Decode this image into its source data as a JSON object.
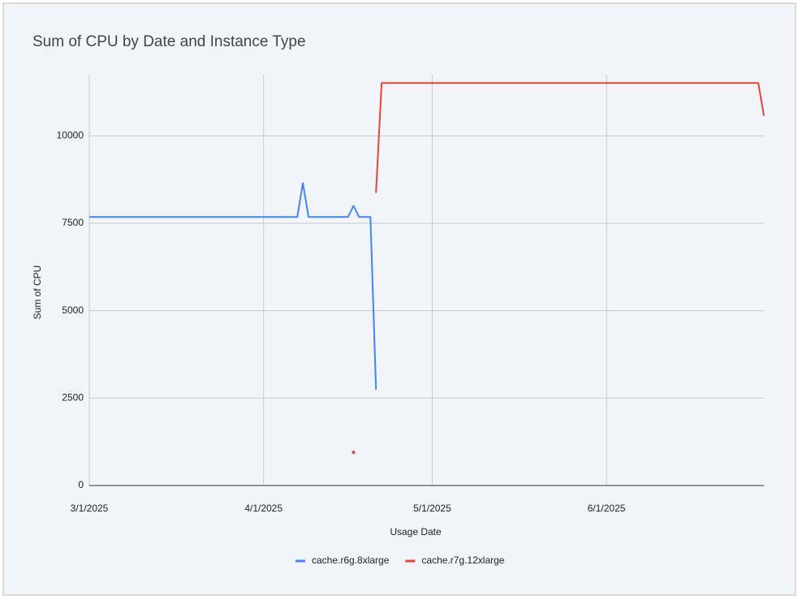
{
  "chart_data": {
    "type": "line",
    "title": "Sum of CPU by Date and Instance Type",
    "x_label": "Usage Date",
    "y_label": "Sum of CPU",
    "x": [
      "2025-03-01",
      "2025-04-07",
      "2025-04-08",
      "2025-04-09",
      "2025-04-16",
      "2025-04-17",
      "2025-04-18",
      "2025-04-20",
      "2025-04-21",
      "2025-04-22",
      "2025-06-28",
      "2025-06-29"
    ],
    "series": [
      {
        "name": "cache.r6g.8xlarge",
        "color": "#4285f4",
        "values": [
          7680,
          7680,
          8650,
          7680,
          7680,
          8000,
          7680,
          7680,
          2740,
          null,
          null,
          null
        ]
      },
      {
        "name": "cache.r7g.12xlarge",
        "color": "#ea4335",
        "values": [
          null,
          null,
          null,
          null,
          null,
          950,
          null,
          null,
          8370,
          11510,
          11510,
          10580
        ]
      }
    ],
    "xlim": [
      "2025-03-01",
      "2025-06-29"
    ],
    "xticks": [
      {
        "value": "2025-03-01",
        "label": "3/1/2025"
      },
      {
        "value": "2025-04-01",
        "label": "4/1/2025"
      },
      {
        "value": "2025-05-01",
        "label": "5/1/2025"
      },
      {
        "value": "2025-06-01",
        "label": "6/1/2025"
      }
    ],
    "ylim": [
      0,
      11750
    ],
    "yticks": [
      0,
      2500,
      5000,
      7500,
      10000
    ],
    "grid": true,
    "legend": "bottom"
  }
}
